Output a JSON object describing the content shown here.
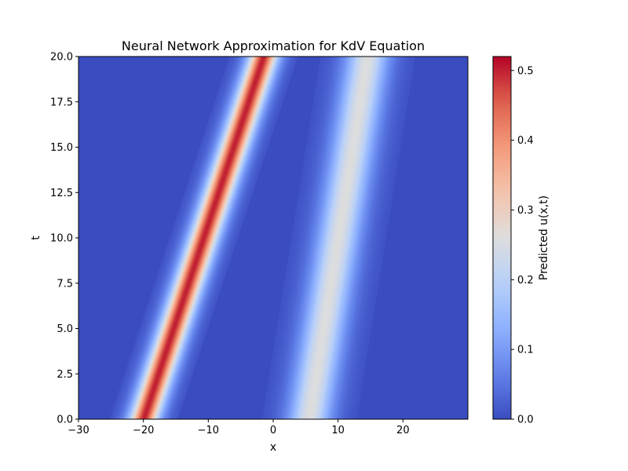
{
  "chart_data": {
    "type": "heatmap",
    "title": "Neural Network Approximation for KdV Equation",
    "xlabel": "x",
    "ylabel": "t",
    "xlim": [
      -30,
      30
    ],
    "ylim": [
      0,
      20
    ],
    "xticks": [
      -30,
      -20,
      -10,
      0,
      10,
      20
    ],
    "xtick_labels": [
      "−30",
      "−20",
      "−10",
      "0",
      "10",
      "20"
    ],
    "yticks": [
      0,
      2.5,
      5,
      7.5,
      10,
      12.5,
      15,
      17.5,
      20
    ],
    "ytick_labels": [
      "0.0",
      "2.5",
      "5.0",
      "7.5",
      "10.0",
      "12.5",
      "15.0",
      "17.5",
      "20.0"
    ],
    "colormap": "coolwarm",
    "colorbar": {
      "label": "Predicted u(x,t)",
      "vmin": 0.0,
      "vmax": 0.52,
      "ticks": [
        0.0,
        0.1,
        0.2,
        0.3,
        0.4,
        0.5
      ],
      "tick_labels": [
        "0.0",
        "0.1",
        "0.2",
        "0.3",
        "0.4",
        "0.5"
      ]
    },
    "waves": [
      {
        "amplitude": 0.5,
        "x_at_t0": -20,
        "x_at_t20": -1.5,
        "half_width": 2.0
      },
      {
        "amplitude": 0.26,
        "x_at_t0": 5.5,
        "x_at_t20": 14.5,
        "half_width": 3.0
      }
    ]
  }
}
